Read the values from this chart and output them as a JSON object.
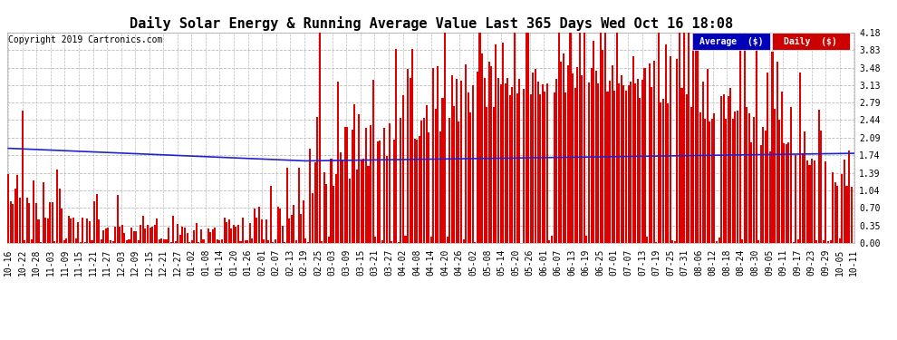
{
  "title": "Daily Solar Energy & Running Average Value Last 365 Days Wed Oct 16 18:08",
  "copyright_text": "Copyright 2019 Cartronics.com",
  "ylabel_right": [
    "4.18",
    "3.83",
    "3.48",
    "3.13",
    "2.79",
    "2.44",
    "2.09",
    "1.74",
    "1.39",
    "1.04",
    "0.70",
    "0.35",
    "0.00"
  ],
  "ymax": 4.18,
  "ymin": 0.0,
  "background_color": "#ffffff",
  "bar_color": "#dd0000",
  "avg_line_color": "#2222cc",
  "grid_color": "#bbbbbb",
  "legend_avg_bg": "#0000bb",
  "legend_daily_bg": "#cc0000",
  "legend_text_color": "#ffffff",
  "title_fontsize": 11,
  "copyright_fontsize": 7,
  "tick_fontsize": 7,
  "n_days": 365,
  "x_tick_labels": [
    "10-16",
    "10-22",
    "10-28",
    "11-03",
    "11-09",
    "11-15",
    "11-21",
    "11-27",
    "12-03",
    "12-09",
    "12-15",
    "12-21",
    "12-27",
    "01-02",
    "01-08",
    "01-14",
    "01-20",
    "01-26",
    "02-01",
    "02-07",
    "02-13",
    "02-19",
    "02-25",
    "03-03",
    "03-09",
    "03-15",
    "03-21",
    "03-27",
    "04-02",
    "04-08",
    "04-14",
    "04-20",
    "04-26",
    "05-02",
    "05-08",
    "05-14",
    "05-20",
    "05-26",
    "06-01",
    "06-07",
    "06-13",
    "06-19",
    "06-25",
    "07-01",
    "07-07",
    "07-13",
    "07-19",
    "07-25",
    "07-31",
    "08-06",
    "08-12",
    "08-18",
    "08-24",
    "08-30",
    "09-05",
    "09-11",
    "09-17",
    "09-23",
    "09-29",
    "10-05",
    "10-11"
  ]
}
